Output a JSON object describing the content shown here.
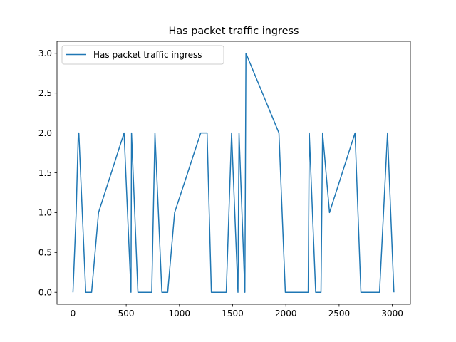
{
  "chart_data": {
    "type": "line",
    "title": "Has packet traffic ingress",
    "xlabel": "",
    "ylabel": "",
    "xlim": [
      -150,
      3170
    ],
    "ylim": [
      -0.15,
      3.15
    ],
    "x_ticks": [
      0,
      500,
      1000,
      1500,
      2000,
      2500,
      3000
    ],
    "y_ticks": [
      0.0,
      0.5,
      1.0,
      1.5,
      2.0,
      2.5,
      3.0
    ],
    "x_tick_labels": [
      "0",
      "500",
      "1000",
      "1500",
      "2000",
      "2500",
      "3000"
    ],
    "y_tick_labels": [
      "0.0",
      "0.5",
      "1.0",
      "1.5",
      "2.0",
      "2.5",
      "3.0"
    ],
    "grid": false,
    "legend_position": "top-left",
    "series": [
      {
        "name": "Has packet traffic ingress",
        "color": "#1f77b4",
        "x": [
          0,
          30,
          50,
          55,
          120,
          175,
          240,
          480,
          545,
          550,
          610,
          720,
          740,
          770,
          835,
          890,
          955,
          1200,
          1260,
          1300,
          1350,
          1440,
          1490,
          1550,
          1560,
          1615,
          1625,
          1935,
          1995,
          2050,
          2160,
          2210,
          2220,
          2280,
          2330,
          2345,
          2410,
          2650,
          2705,
          2870,
          2880,
          2955,
          3015
        ],
        "y": [
          0,
          1,
          2,
          2,
          0,
          0,
          1,
          2,
          0,
          2,
          0,
          0,
          0,
          2,
          0,
          0,
          1,
          2,
          2,
          0,
          0,
          0,
          2,
          0,
          2,
          0,
          3,
          2,
          0,
          0,
          0,
          0,
          2,
          0,
          0,
          2,
          1,
          2,
          0,
          0,
          0,
          2,
          0
        ]
      }
    ]
  }
}
